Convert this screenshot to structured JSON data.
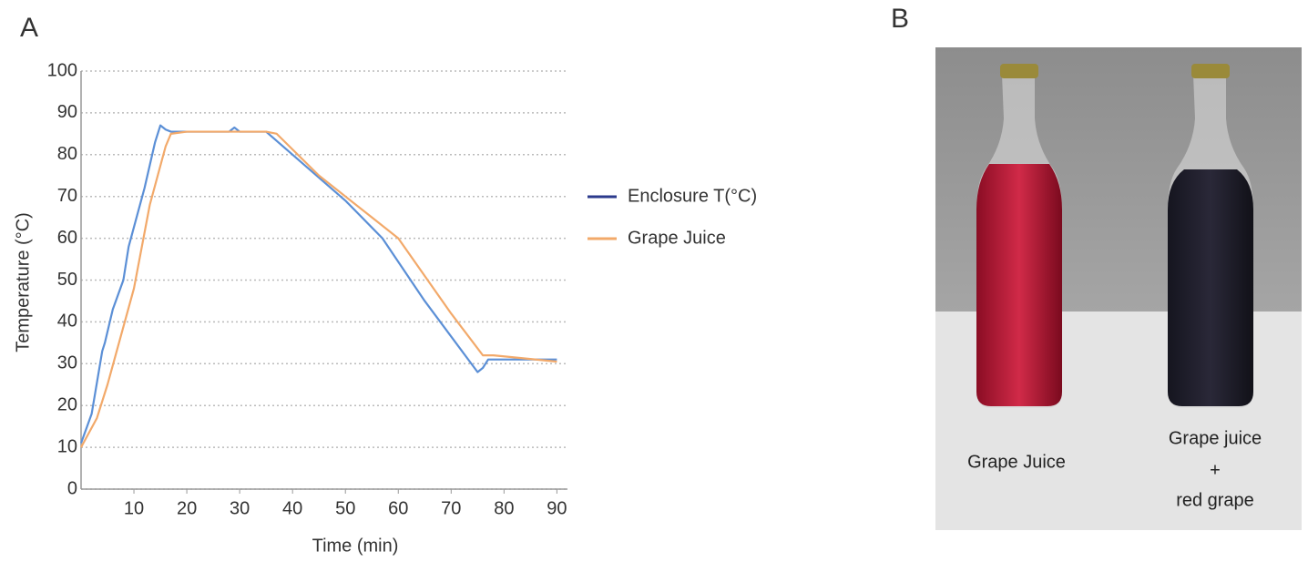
{
  "panel_labels": {
    "a": "A",
    "b": "B"
  },
  "chart_data": {
    "type": "line",
    "x_label": "Time (min)",
    "y_label": "Temperature (°C)",
    "xlim": [
      0,
      92
    ],
    "ylim": [
      0,
      100
    ],
    "xticks": [
      10,
      20,
      30,
      40,
      50,
      60,
      70,
      80,
      90
    ],
    "yticks": [
      0,
      10,
      20,
      30,
      40,
      50,
      60,
      70,
      80,
      90,
      100
    ],
    "grid": true,
    "legend": "right",
    "series": [
      {
        "name": "Enclosure T(°C)",
        "color": "#5b8fd6",
        "legend_color": "#2b3a8c",
        "x": [
          0,
          2,
          4,
          4.5,
          6,
          8,
          9,
          12,
          14,
          15,
          16,
          17,
          20,
          28,
          29,
          30,
          35,
          40,
          50,
          57,
          65,
          75,
          76,
          77,
          90
        ],
        "values": [
          11,
          18,
          33,
          35,
          43,
          50,
          58,
          72,
          83,
          87,
          86,
          85.5,
          85.5,
          85.5,
          86.5,
          85.5,
          85.5,
          80,
          69,
          60,
          45,
          28,
          29,
          31,
          31
        ]
      },
      {
        "name": "Grape Juice",
        "color": "#f2a96a",
        "legend_color": "#f2a96a",
        "x": [
          0,
          3,
          5,
          10,
          13,
          16,
          17,
          20,
          35,
          37,
          45,
          55,
          60,
          70,
          76,
          78,
          90
        ],
        "values": [
          10,
          17,
          25,
          48,
          68,
          82,
          85,
          85.5,
          85.5,
          85,
          75,
          65,
          60,
          42,
          32,
          32,
          30.5
        ]
      }
    ]
  },
  "photo": {
    "left_label": "Grape Juice",
    "right_label_lines": [
      "Grape juice",
      "+",
      "red grape"
    ]
  }
}
